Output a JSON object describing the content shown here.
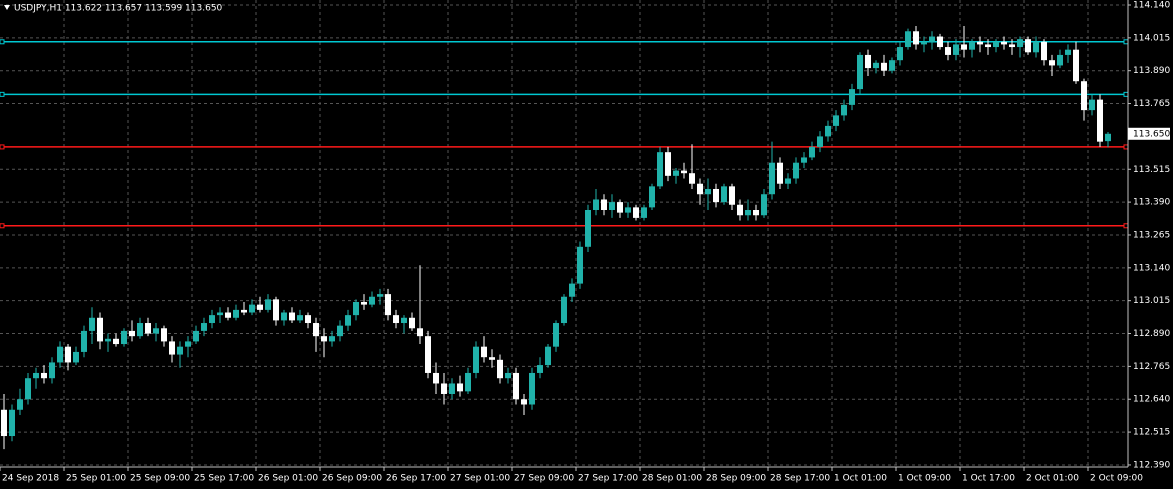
{
  "chart_data": {
    "type": "candlestick",
    "title": "USDJPY,H1  113.622 113.657 113.599 113.650",
    "categories": [
      "24 Sep 2018",
      null,
      null,
      null,
      null,
      null,
      null,
      null,
      "25 Sep 01:00",
      null,
      null,
      null,
      null,
      null,
      null,
      null,
      "25 Sep 09:00",
      null,
      null,
      null,
      null,
      null,
      null,
      null,
      "25 Sep 17:00",
      null,
      null,
      null,
      null,
      null,
      null,
      null,
      "26 Sep 01:00",
      null,
      null,
      null,
      null,
      null,
      null,
      null,
      "26 Sep 09:00",
      null,
      null,
      null,
      null,
      null,
      null,
      null,
      "26 Sep 17:00",
      null,
      null,
      null,
      null,
      null,
      null,
      null,
      "27 Sep 01:00",
      null,
      null,
      null,
      null,
      null,
      null,
      null,
      "27 Sep 09:00",
      null,
      null,
      null,
      null,
      null,
      null,
      null,
      "27 Sep 17:00",
      null,
      null,
      null,
      null,
      null,
      null,
      null,
      "28 Sep 01:00",
      null,
      null,
      null,
      null,
      null,
      null,
      null,
      "28 Sep 09:00",
      null,
      null,
      null,
      null,
      null,
      null,
      null,
      "28 Sep 17:00",
      null,
      null,
      null,
      null,
      null,
      null,
      null,
      "1 Oct 01:00",
      null,
      null,
      null,
      null,
      null,
      null,
      null,
      "1 Oct 09:00",
      null,
      null,
      null,
      null,
      null,
      null,
      null,
      "1 Oct 17:00",
      null,
      null,
      null,
      null,
      null,
      null,
      null,
      "2 Oct 01:00",
      null,
      null,
      null,
      null,
      null,
      null,
      null,
      "2 Oct 09:00",
      null,
      null
    ],
    "open": [
      112.6,
      112.5,
      112.6,
      112.64,
      112.72,
      112.74,
      112.72,
      112.78,
      112.84,
      112.78,
      112.82,
      112.9,
      112.95,
      112.86,
      112.87,
      112.85,
      112.9,
      112.88,
      112.93,
      112.89,
      112.91,
      112.86,
      112.81,
      112.84,
      112.86,
      112.9,
      112.93,
      112.96,
      112.97,
      112.95,
      112.98,
      112.97,
      113.0,
      112.98,
      113.02,
      112.94,
      112.97,
      112.94,
      112.96,
      112.93,
      112.88,
      112.86,
      112.88,
      112.92,
      112.96,
      113.01,
      113.0,
      113.03,
      113.04,
      112.96,
      112.93,
      112.95,
      112.91,
      112.88,
      112.74,
      112.7,
      112.66,
      112.7,
      112.67,
      112.74,
      112.84,
      112.8,
      112.79,
      112.72,
      112.74,
      112.64,
      112.62,
      112.74,
      112.77,
      112.84,
      112.93,
      113.03,
      113.08,
      113.22,
      113.36,
      113.4,
      113.36,
      113.39,
      113.35,
      113.37,
      113.33,
      113.37,
      113.45,
      113.58,
      113.49,
      113.51,
      113.5,
      113.46,
      113.42,
      113.44,
      113.39,
      113.45,
      113.38,
      113.34,
      113.36,
      113.34,
      113.42,
      113.54,
      113.46,
      113.48,
      113.54,
      113.56,
      113.6,
      113.64,
      113.68,
      113.72,
      113.76,
      113.82,
      113.95,
      113.9,
      113.92,
      113.89,
      113.93,
      113.98,
      114.04,
      113.99,
      114.0,
      114.02,
      113.98,
      113.95,
      113.99,
      113.97,
      114.0,
      113.99,
      113.98,
      114.0,
      113.99,
      113.98,
      114.01,
      113.96,
      114.0,
      113.93,
      113.91,
      113.95,
      113.97,
      113.85,
      113.74,
      113.78,
      113.622
    ],
    "high": [
      112.66,
      112.62,
      112.68,
      112.74,
      112.76,
      112.77,
      112.8,
      112.86,
      112.85,
      112.84,
      112.92,
      112.99,
      112.97,
      112.89,
      112.89,
      112.91,
      112.94,
      112.95,
      112.95,
      112.93,
      112.92,
      112.88,
      112.86,
      112.88,
      112.92,
      112.95,
      112.98,
      112.99,
      112.99,
      113.0,
      113.01,
      113.02,
      113.03,
      113.04,
      113.03,
      112.98,
      112.99,
      112.98,
      112.97,
      112.95,
      112.91,
      112.9,
      112.94,
      112.98,
      113.02,
      113.04,
      113.05,
      113.06,
      113.06,
      112.98,
      112.96,
      112.97,
      113.15,
      112.9,
      112.78,
      112.74,
      112.72,
      112.73,
      112.76,
      112.86,
      112.88,
      112.83,
      112.81,
      112.76,
      112.76,
      112.66,
      112.76,
      112.8,
      112.85,
      112.94,
      113.04,
      113.1,
      113.24,
      113.38,
      113.44,
      113.42,
      113.42,
      113.4,
      113.39,
      113.38,
      113.38,
      113.46,
      113.6,
      113.6,
      113.52,
      113.54,
      113.61,
      113.48,
      113.48,
      113.46,
      113.46,
      113.46,
      113.4,
      113.4,
      113.38,
      113.44,
      113.62,
      113.56,
      113.5,
      113.56,
      113.58,
      113.62,
      113.66,
      113.7,
      113.74,
      113.78,
      113.84,
      113.96,
      113.97,
      113.93,
      113.95,
      113.94,
      114.0,
      114.05,
      114.06,
      114.02,
      114.04,
      114.03,
      114.0,
      114.01,
      114.06,
      114.01,
      114.02,
      114.01,
      114.01,
      114.02,
      114.01,
      114.02,
      114.02,
      114.02,
      114.01,
      113.95,
      113.97,
      113.99,
      114.0,
      113.86,
      113.8,
      113.8,
      113.657
    ],
    "low": [
      112.45,
      112.48,
      112.58,
      112.62,
      112.68,
      112.7,
      112.7,
      112.76,
      112.75,
      112.77,
      112.8,
      112.85,
      112.83,
      112.82,
      112.84,
      112.84,
      112.86,
      112.87,
      112.88,
      112.86,
      112.84,
      112.78,
      112.76,
      112.8,
      112.85,
      112.88,
      112.91,
      112.93,
      112.94,
      112.94,
      112.96,
      112.96,
      112.97,
      112.97,
      112.92,
      112.92,
      112.93,
      112.93,
      112.91,
      112.82,
      112.8,
      112.84,
      112.86,
      112.9,
      112.94,
      112.98,
      112.99,
      113.0,
      112.94,
      112.91,
      112.89,
      112.9,
      112.85,
      112.72,
      112.66,
      112.62,
      112.64,
      112.65,
      112.66,
      112.72,
      112.78,
      112.76,
      112.7,
      112.7,
      112.62,
      112.58,
      112.6,
      112.72,
      112.76,
      112.82,
      112.92,
      113.01,
      113.06,
      113.2,
      113.34,
      113.34,
      113.33,
      113.33,
      113.33,
      113.32,
      113.32,
      113.36,
      113.44,
      113.47,
      113.46,
      113.48,
      113.44,
      113.38,
      113.36,
      113.37,
      113.38,
      113.36,
      113.32,
      113.32,
      113.32,
      113.33,
      113.4,
      113.44,
      113.44,
      113.46,
      113.52,
      113.55,
      113.58,
      113.62,
      113.66,
      113.7,
      113.74,
      113.8,
      113.87,
      113.88,
      113.87,
      113.88,
      113.91,
      113.97,
      113.97,
      113.96,
      113.97,
      113.97,
      113.93,
      113.93,
      113.94,
      113.94,
      113.96,
      113.95,
      113.96,
      113.97,
      113.95,
      113.94,
      113.95,
      113.94,
      113.91,
      113.87,
      113.9,
      113.92,
      113.84,
      113.7,
      113.72,
      113.6,
      113.599
    ],
    "close": [
      112.5,
      112.6,
      112.64,
      112.72,
      112.74,
      112.72,
      112.78,
      112.84,
      112.78,
      112.82,
      112.9,
      112.95,
      112.86,
      112.87,
      112.85,
      112.9,
      112.88,
      112.93,
      112.89,
      112.91,
      112.86,
      112.81,
      112.84,
      112.86,
      112.9,
      112.93,
      112.96,
      112.97,
      112.95,
      112.98,
      112.97,
      113.0,
      112.98,
      113.02,
      112.94,
      112.97,
      112.94,
      112.96,
      112.93,
      112.88,
      112.86,
      112.88,
      112.92,
      112.96,
      113.01,
      113.0,
      113.03,
      113.04,
      112.96,
      112.93,
      112.95,
      112.91,
      112.88,
      112.74,
      112.7,
      112.66,
      112.7,
      112.67,
      112.74,
      112.84,
      112.8,
      112.79,
      112.72,
      112.74,
      112.64,
      112.62,
      112.74,
      112.77,
      112.84,
      112.93,
      113.03,
      113.08,
      113.22,
      113.36,
      113.4,
      113.36,
      113.39,
      113.35,
      113.37,
      113.33,
      113.37,
      113.45,
      113.58,
      113.49,
      113.51,
      113.5,
      113.46,
      113.42,
      113.44,
      113.39,
      113.45,
      113.38,
      113.34,
      113.36,
      113.34,
      113.42,
      113.54,
      113.46,
      113.48,
      113.54,
      113.56,
      113.6,
      113.64,
      113.68,
      113.72,
      113.76,
      113.82,
      113.95,
      113.9,
      113.92,
      113.89,
      113.93,
      113.98,
      114.04,
      113.99,
      114.0,
      114.02,
      113.98,
      113.95,
      113.99,
      113.97,
      114.0,
      113.99,
      113.98,
      114.0,
      113.99,
      113.98,
      114.01,
      113.96,
      114.0,
      113.93,
      113.91,
      113.95,
      113.97,
      113.85,
      113.74,
      113.78,
      113.62,
      113.65
    ],
    "up_color": "#20b2aa",
    "down_color": "#ffffff",
    "ylim": [
      112.386,
      114.159
    ],
    "yticks": [
      {
        "value": 114.14,
        "label": "114.140"
      },
      {
        "value": 114.015,
        "label": "114.015"
      },
      {
        "value": 113.89,
        "label": "113.890"
      },
      {
        "value": 113.765,
        "label": "113.765"
      },
      {
        "value": 113.515,
        "label": "113.515"
      },
      {
        "value": 113.39,
        "label": "113.390"
      },
      {
        "value": 113.265,
        "label": "113.265"
      },
      {
        "value": 113.14,
        "label": "113.140"
      },
      {
        "value": 113.015,
        "label": "113.015"
      },
      {
        "value": 112.89,
        "label": "112.890"
      },
      {
        "value": 112.765,
        "label": "112.765"
      },
      {
        "value": 112.64,
        "label": "112.640"
      },
      {
        "value": 112.515,
        "label": "112.515"
      },
      {
        "value": 112.39,
        "label": "112.390"
      }
    ],
    "grid": true,
    "price_label": {
      "value": 113.65,
      "label": "113.650"
    },
    "levels": [
      {
        "value": 114.0,
        "color": "#00c8d2"
      },
      {
        "value": 113.8,
        "color": "#00c8d2"
      },
      {
        "value": 113.6,
        "color": "#ff1a1a"
      },
      {
        "value": 113.3,
        "color": "#ff1a1a"
      }
    ]
  }
}
